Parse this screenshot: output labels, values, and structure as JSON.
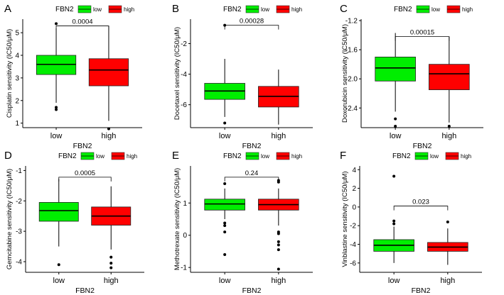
{
  "figure": {
    "legend_title": "FBN2",
    "x_axis_label": "FBN2",
    "groups": [
      "low",
      "high"
    ]
  },
  "colors": {
    "low": "#00EE00",
    "high": "#FF0000",
    "axis": "#000000"
  },
  "chart_data": [
    {
      "panel": "A",
      "type": "box",
      "title": "",
      "xlabel": "FBN2",
      "ylabel": "Cisplatin sensitivity (IC50/μM)",
      "categories": [
        "low",
        "high"
      ],
      "legend": [
        "low",
        "high"
      ],
      "ylim": [
        0.8,
        5.6
      ],
      "yticks": [
        1,
        2,
        3,
        4,
        5
      ],
      "pvalue": "0.0004",
      "bracket_y": 5.3,
      "boxes": [
        {
          "group": "low",
          "min": 1.9,
          "q1": 3.15,
          "median": 3.6,
          "q3": 4.0,
          "max": 5.2,
          "outliers": [
            5.4,
            1.7,
            1.6
          ]
        },
        {
          "group": "high",
          "min": 1.1,
          "q1": 2.65,
          "median": 3.35,
          "q3": 3.85,
          "max": 5.3,
          "outliers": [
            0.75
          ]
        }
      ]
    },
    {
      "panel": "B",
      "type": "box",
      "title": "",
      "xlabel": "FBN2",
      "ylabel": "Docetaxel sensitivity (IC50/μM)",
      "categories": [
        "low",
        "high"
      ],
      "legend": [
        "low",
        "high"
      ],
      "ylim": [
        -7.5,
        -0.4
      ],
      "yticks": [
        -6,
        -4,
        -2
      ],
      "pvalue": "0.00028",
      "bracket_y": -0.8,
      "boxes": [
        {
          "group": "low",
          "min": -6.8,
          "q1": -5.65,
          "median": -5.1,
          "q3": -4.6,
          "max": -3.0,
          "outliers": [
            -0.8,
            -7.2
          ]
        },
        {
          "group": "high",
          "min": -7.3,
          "q1": -6.15,
          "median": -5.45,
          "q3": -4.8,
          "max": -3.7,
          "outliers": []
        }
      ]
    },
    {
      "panel": "C",
      "type": "box",
      "title": "",
      "xlabel": "FBN2",
      "ylabel": "Doxorubicin sensitivity (IC50/μM)",
      "categories": [
        "low",
        "high"
      ],
      "legend": [
        "low",
        "high"
      ],
      "ylim": [
        -2.67,
        -1.18
      ],
      "yticks": [
        -2.4,
        -2.0,
        -1.6,
        -1.2
      ],
      "yticklabels": [
        "-2.4",
        "-2.0",
        "-1.6",
        "-1.2"
      ],
      "pvalue": "0.00015",
      "bracket_y": -1.42,
      "boxes": [
        {
          "group": "low",
          "min": -2.45,
          "q1": -2.03,
          "median": -1.85,
          "q3": -1.7,
          "max": -1.37,
          "outliers": [
            -2.55,
            -2.65
          ]
        },
        {
          "group": "high",
          "min": -2.6,
          "q1": -2.15,
          "median": -1.93,
          "q3": -1.8,
          "max": -1.42,
          "outliers": [
            -2.65
          ]
        }
      ]
    },
    {
      "panel": "D",
      "type": "box",
      "title": "",
      "xlabel": "FBN2",
      "ylabel": "Gemcitabine sensitivity (IC50/μM)",
      "categories": [
        "low",
        "high"
      ],
      "legend": [
        "low",
        "high"
      ],
      "ylim": [
        -4.35,
        -0.85
      ],
      "yticks": [
        -4,
        -3,
        -2,
        -1
      ],
      "pvalue": "0.0005",
      "bracket_y": -1.22,
      "boxes": [
        {
          "group": "low",
          "min": -3.5,
          "q1": -2.67,
          "median": -2.32,
          "q3": -2.05,
          "max": -1.28,
          "outliers": [
            -4.1
          ]
        },
        {
          "group": "high",
          "min": -3.6,
          "q1": -2.8,
          "median": -2.5,
          "q3": -2.2,
          "max": -1.52,
          "outliers": [
            -3.85,
            -4.05,
            -4.2
          ]
        }
      ]
    },
    {
      "panel": "E",
      "type": "box",
      "title": "",
      "xlabel": "FBN2",
      "ylabel": "Methotrexate sensitivity (IC50/μM)",
      "categories": [
        "low",
        "high"
      ],
      "legend": [
        "low",
        "high"
      ],
      "ylim": [
        -1.15,
        2.15
      ],
      "yticks": [
        -1,
        0,
        1
      ],
      "pvalue": "0.24",
      "bracket_y": 1.8,
      "boxes": [
        {
          "group": "low",
          "min": 0.5,
          "q1": 0.78,
          "median": 0.97,
          "q3": 1.12,
          "max": 1.45,
          "outliers": [
            1.6,
            0.38,
            0.3,
            0.1,
            -0.6
          ]
        },
        {
          "group": "high",
          "min": 0.3,
          "q1": 0.78,
          "median": 0.95,
          "q3": 1.12,
          "max": 1.45,
          "outliers": [
            1.65,
            1.7,
            0.1,
            0.05,
            -0.2,
            -0.3,
            -0.45,
            -1.05
          ]
        }
      ]
    },
    {
      "panel": "F",
      "type": "box",
      "title": "",
      "xlabel": "FBN2",
      "ylabel": "Vinblastine sensitivity (IC50/μM)",
      "categories": [
        "low",
        "high"
      ],
      "legend": [
        "low",
        "high"
      ],
      "ylim": [
        -7.0,
        4.4
      ],
      "yticks": [
        -6,
        -4,
        -2,
        0,
        2,
        4
      ],
      "pvalue": "0.023",
      "bracket_y": 0.1,
      "boxes": [
        {
          "group": "low",
          "min": -6.0,
          "q1": -4.75,
          "median": -4.1,
          "q3": -3.5,
          "max": -2.1,
          "outliers": [
            3.3,
            -1.5,
            -1.8
          ]
        },
        {
          "group": "high",
          "min": -6.2,
          "q1": -4.75,
          "median": -4.3,
          "q3": -3.8,
          "max": -2.3,
          "outliers": [
            -1.6
          ]
        }
      ]
    }
  ]
}
